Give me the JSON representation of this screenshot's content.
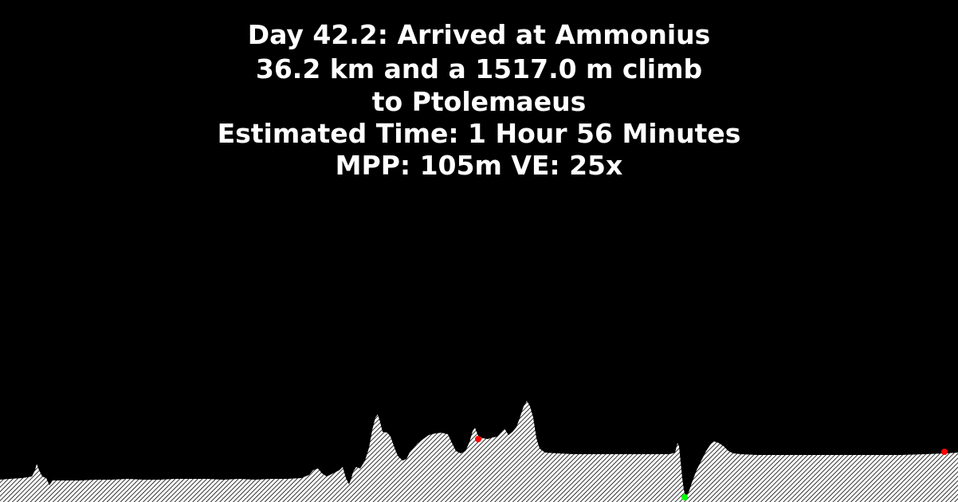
{
  "info": {
    "day_line": "Day 42.2: Arrived at Ammonius",
    "distance_line": "36.2 km and a 1517.0 m climb",
    "destination_line": "to Ptolemaeus",
    "time_line": "Estimated Time: 1 Hour 56 Minutes",
    "scale_line": "MPP: 105m VE: 25x"
  },
  "terrain": {
    "fill_color": "#ffffff",
    "hatch_color": "#000000",
    "markers": [
      {
        "name": "waypoint-marker",
        "color": "#ff0000"
      },
      {
        "name": "current-position-marker",
        "color": "#00ff00"
      },
      {
        "name": "destination-marker",
        "color": "#ff0000"
      }
    ]
  }
}
